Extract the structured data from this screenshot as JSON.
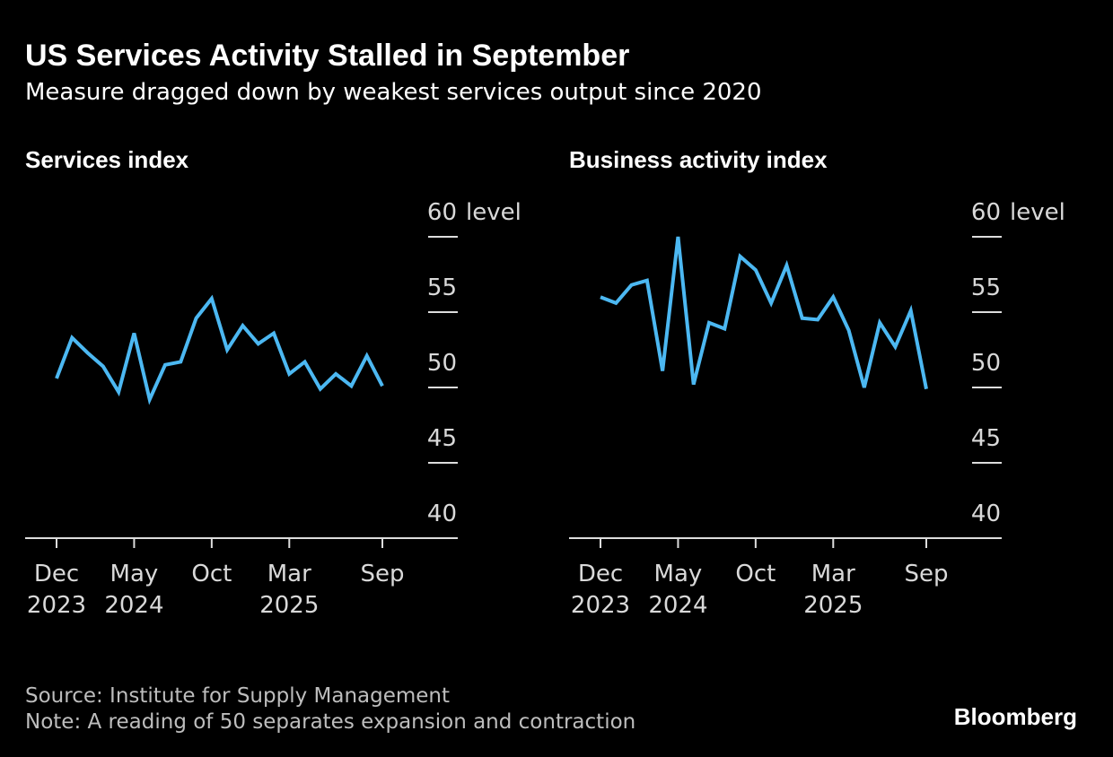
{
  "title": "US Services Activity Stalled in September",
  "subtitle": "Measure dragged down by weakest services output since 2020",
  "source": "Source: Institute for Supply Management",
  "note": "Note: A reading of 50 separates expansion and contraction",
  "logo": "Bloomberg",
  "chart_data": [
    {
      "type": "line",
      "title": "Services index",
      "y_unit": "level",
      "color": "#4cb8f2",
      "categories": [
        "Dec 2023",
        null,
        null,
        null,
        null,
        "May 2024",
        null,
        null,
        null,
        null,
        "Oct",
        null,
        null,
        null,
        null,
        "Mar 2025",
        null,
        null,
        null,
        null,
        null,
        "Sep"
      ],
      "values": [
        50.6,
        53.3,
        52.3,
        51.4,
        49.7,
        53.6,
        49.2,
        51.5,
        51.7,
        54.6,
        55.9,
        52.5,
        54.1,
        52.9,
        53.6,
        50.9,
        51.7,
        49.9,
        50.9,
        50.1,
        52.1,
        50.1
      ],
      "ylim": [
        40,
        60
      ],
      "yticks": [
        40,
        45,
        50,
        55,
        60
      ]
    },
    {
      "type": "line",
      "title": "Business activity index",
      "y_unit": "level",
      "color": "#4cb8f2",
      "categories": [
        "Dec 2023",
        null,
        null,
        null,
        null,
        "May 2024",
        null,
        null,
        null,
        null,
        "Oct",
        null,
        null,
        null,
        null,
        "Mar 2025",
        null,
        null,
        null,
        null,
        null,
        "Sep"
      ],
      "values": [
        56.0,
        55.6,
        56.8,
        57.1,
        51.1,
        60.0,
        50.2,
        54.3,
        53.9,
        58.7,
        57.8,
        55.6,
        58.1,
        54.6,
        54.5,
        56.0,
        53.8,
        50.0,
        54.3,
        52.7,
        55.1,
        49.9
      ],
      "ylim": [
        40,
        60
      ],
      "yticks": [
        40,
        45,
        50,
        55,
        60
      ]
    }
  ]
}
